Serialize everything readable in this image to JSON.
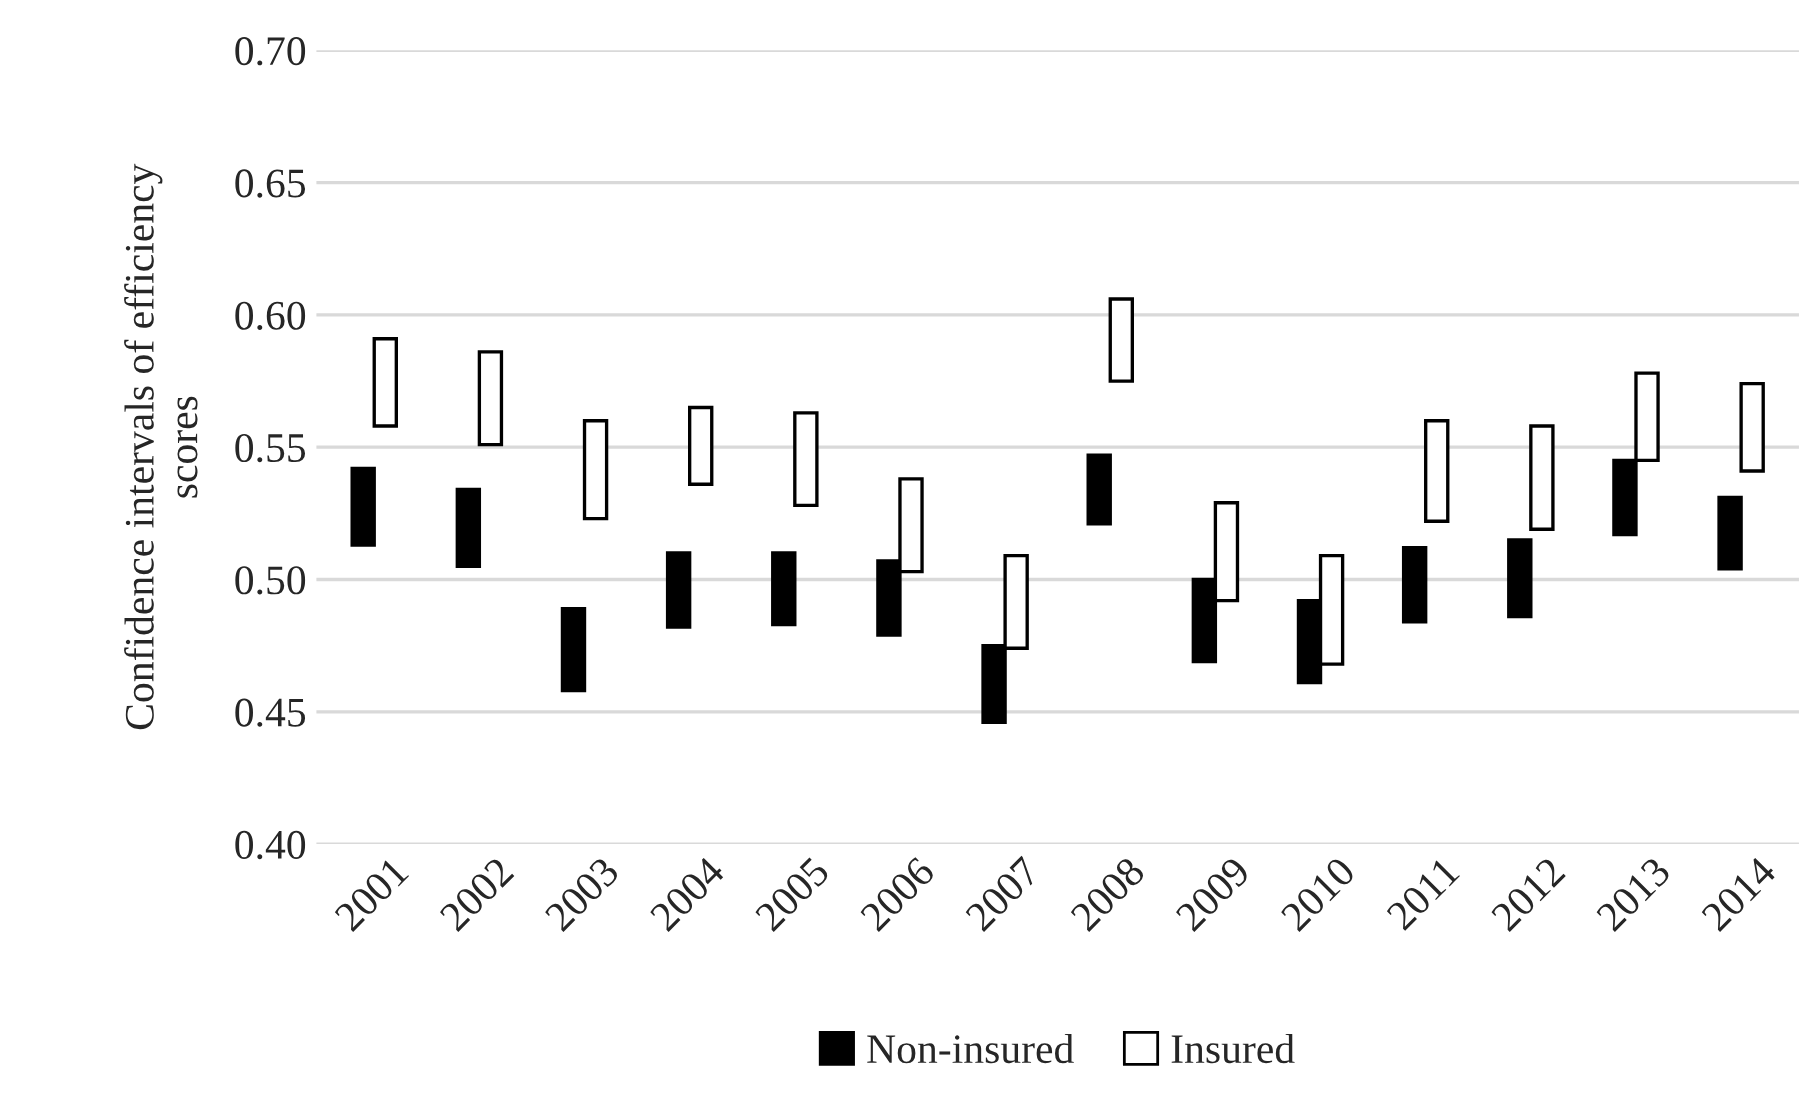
{
  "chart_data": {
    "type": "bar",
    "ylabel": "Confidence intervals of efficiency\nscores",
    "categories": [
      "2001",
      "2002",
      "2003",
      "2004",
      "2005",
      "2006",
      "2007",
      "2008",
      "2009",
      "2010",
      "2011",
      "2012",
      "2013",
      "2014"
    ],
    "series": [
      {
        "name": "Non-insured",
        "color": "#000000",
        "base": [
          0.513,
          0.505,
          0.458,
          0.482,
          0.483,
          0.479,
          0.446,
          0.521,
          0.469,
          0.461,
          0.484,
          0.486,
          0.517,
          0.504
        ],
        "values": [
          0.029,
          0.029,
          0.031,
          0.028,
          0.027,
          0.028,
          0.029,
          0.026,
          0.031,
          0.031,
          0.028,
          0.029,
          0.028,
          0.027
        ]
      },
      {
        "name": "Insured",
        "color": "#ffffff",
        "base": [
          0.558,
          0.551,
          0.523,
          0.536,
          0.528,
          0.503,
          0.474,
          0.575,
          0.492,
          0.468,
          0.522,
          0.519,
          0.545,
          0.541
        ],
        "values": [
          0.033,
          0.035,
          0.037,
          0.029,
          0.035,
          0.035,
          0.035,
          0.031,
          0.037,
          0.041,
          0.038,
          0.039,
          0.033,
          0.033
        ]
      }
    ],
    "ylim": [
      0.4,
      0.7
    ],
    "yticks": [
      {
        "value": 0.4,
        "label": "0.40"
      },
      {
        "value": 0.45,
        "label": "0.45"
      },
      {
        "value": 0.5,
        "label": "0.50"
      },
      {
        "value": 0.55,
        "label": "0.55"
      },
      {
        "value": 0.6,
        "label": "0.60"
      },
      {
        "value": 0.65,
        "label": "0.65"
      },
      {
        "value": 0.7,
        "label": "0.70"
      }
    ],
    "grid": "y",
    "legend": "bottom"
  }
}
